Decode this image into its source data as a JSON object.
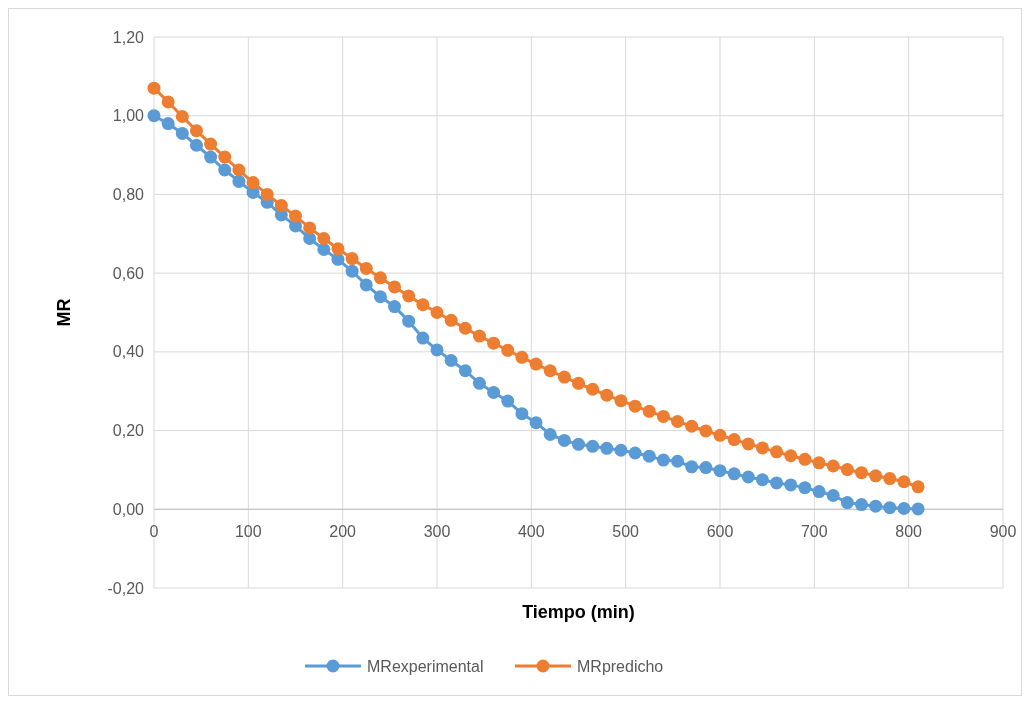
{
  "chart_data": {
    "type": "line",
    "xlabel": "Tiempo (min)",
    "ylabel": "MR",
    "x": [
      0,
      15,
      30,
      45,
      60,
      75,
      90,
      105,
      120,
      135,
      150,
      165,
      180,
      195,
      210,
      225,
      240,
      255,
      270,
      285,
      300,
      315,
      330,
      345,
      360,
      375,
      390,
      405,
      420,
      435,
      450,
      465,
      480,
      495,
      510,
      525,
      540,
      555,
      570,
      585,
      600,
      615,
      630,
      645,
      660,
      675,
      690,
      705,
      720,
      735,
      750,
      765,
      780,
      795,
      810
    ],
    "series": [
      {
        "name": "MRexperimental",
        "color": "#5b9bd5",
        "values": [
          1.0,
          0.98,
          0.955,
          0.925,
          0.895,
          0.862,
          0.833,
          0.805,
          0.78,
          0.748,
          0.72,
          0.688,
          0.66,
          0.635,
          0.605,
          0.57,
          0.54,
          0.515,
          0.478,
          0.435,
          0.405,
          0.378,
          0.352,
          0.32,
          0.297,
          0.275,
          0.243,
          0.22,
          0.19,
          0.175,
          0.165,
          0.16,
          0.155,
          0.15,
          0.143,
          0.135,
          0.125,
          0.122,
          0.108,
          0.106,
          0.098,
          0.09,
          0.082,
          0.075,
          0.067,
          0.062,
          0.055,
          0.045,
          0.035,
          0.017,
          0.012,
          0.008,
          0.004,
          0.002,
          0.001
        ]
      },
      {
        "name": "MRpredicho",
        "color": "#ed7d31",
        "values": [
          1.07,
          1.035,
          0.998,
          0.962,
          0.928,
          0.895,
          0.862,
          0.83,
          0.8,
          0.772,
          0.745,
          0.715,
          0.688,
          0.662,
          0.637,
          0.612,
          0.588,
          0.565,
          0.542,
          0.52,
          0.5,
          0.48,
          0.46,
          0.44,
          0.422,
          0.404,
          0.386,
          0.369,
          0.352,
          0.336,
          0.32,
          0.305,
          0.29,
          0.276,
          0.262,
          0.249,
          0.236,
          0.223,
          0.211,
          0.199,
          0.188,
          0.177,
          0.166,
          0.156,
          0.146,
          0.136,
          0.127,
          0.118,
          0.11,
          0.101,
          0.093,
          0.085,
          0.078,
          0.07,
          0.057
        ]
      }
    ],
    "xlim": [
      0,
      900
    ],
    "xticks": [
      0,
      100,
      200,
      300,
      400,
      500,
      600,
      700,
      800,
      900
    ],
    "ylim": [
      -0.2,
      1.2
    ],
    "yticks": [
      {
        "value": -0.2,
        "label": "-0,20"
      },
      {
        "value": 0,
        "label": "0,00"
      },
      {
        "value": 0.2,
        "label": "0,20"
      },
      {
        "value": 0.4,
        "label": "0,40"
      },
      {
        "value": 0.6,
        "label": "0,60"
      },
      {
        "value": 0.8,
        "label": "0,80"
      },
      {
        "value": 1.0,
        "label": "1,00"
      },
      {
        "value": 1.2,
        "label": "1,20"
      }
    ],
    "grid": true,
    "legend": "bottom",
    "marker": "circle",
    "line_style": "solid"
  }
}
